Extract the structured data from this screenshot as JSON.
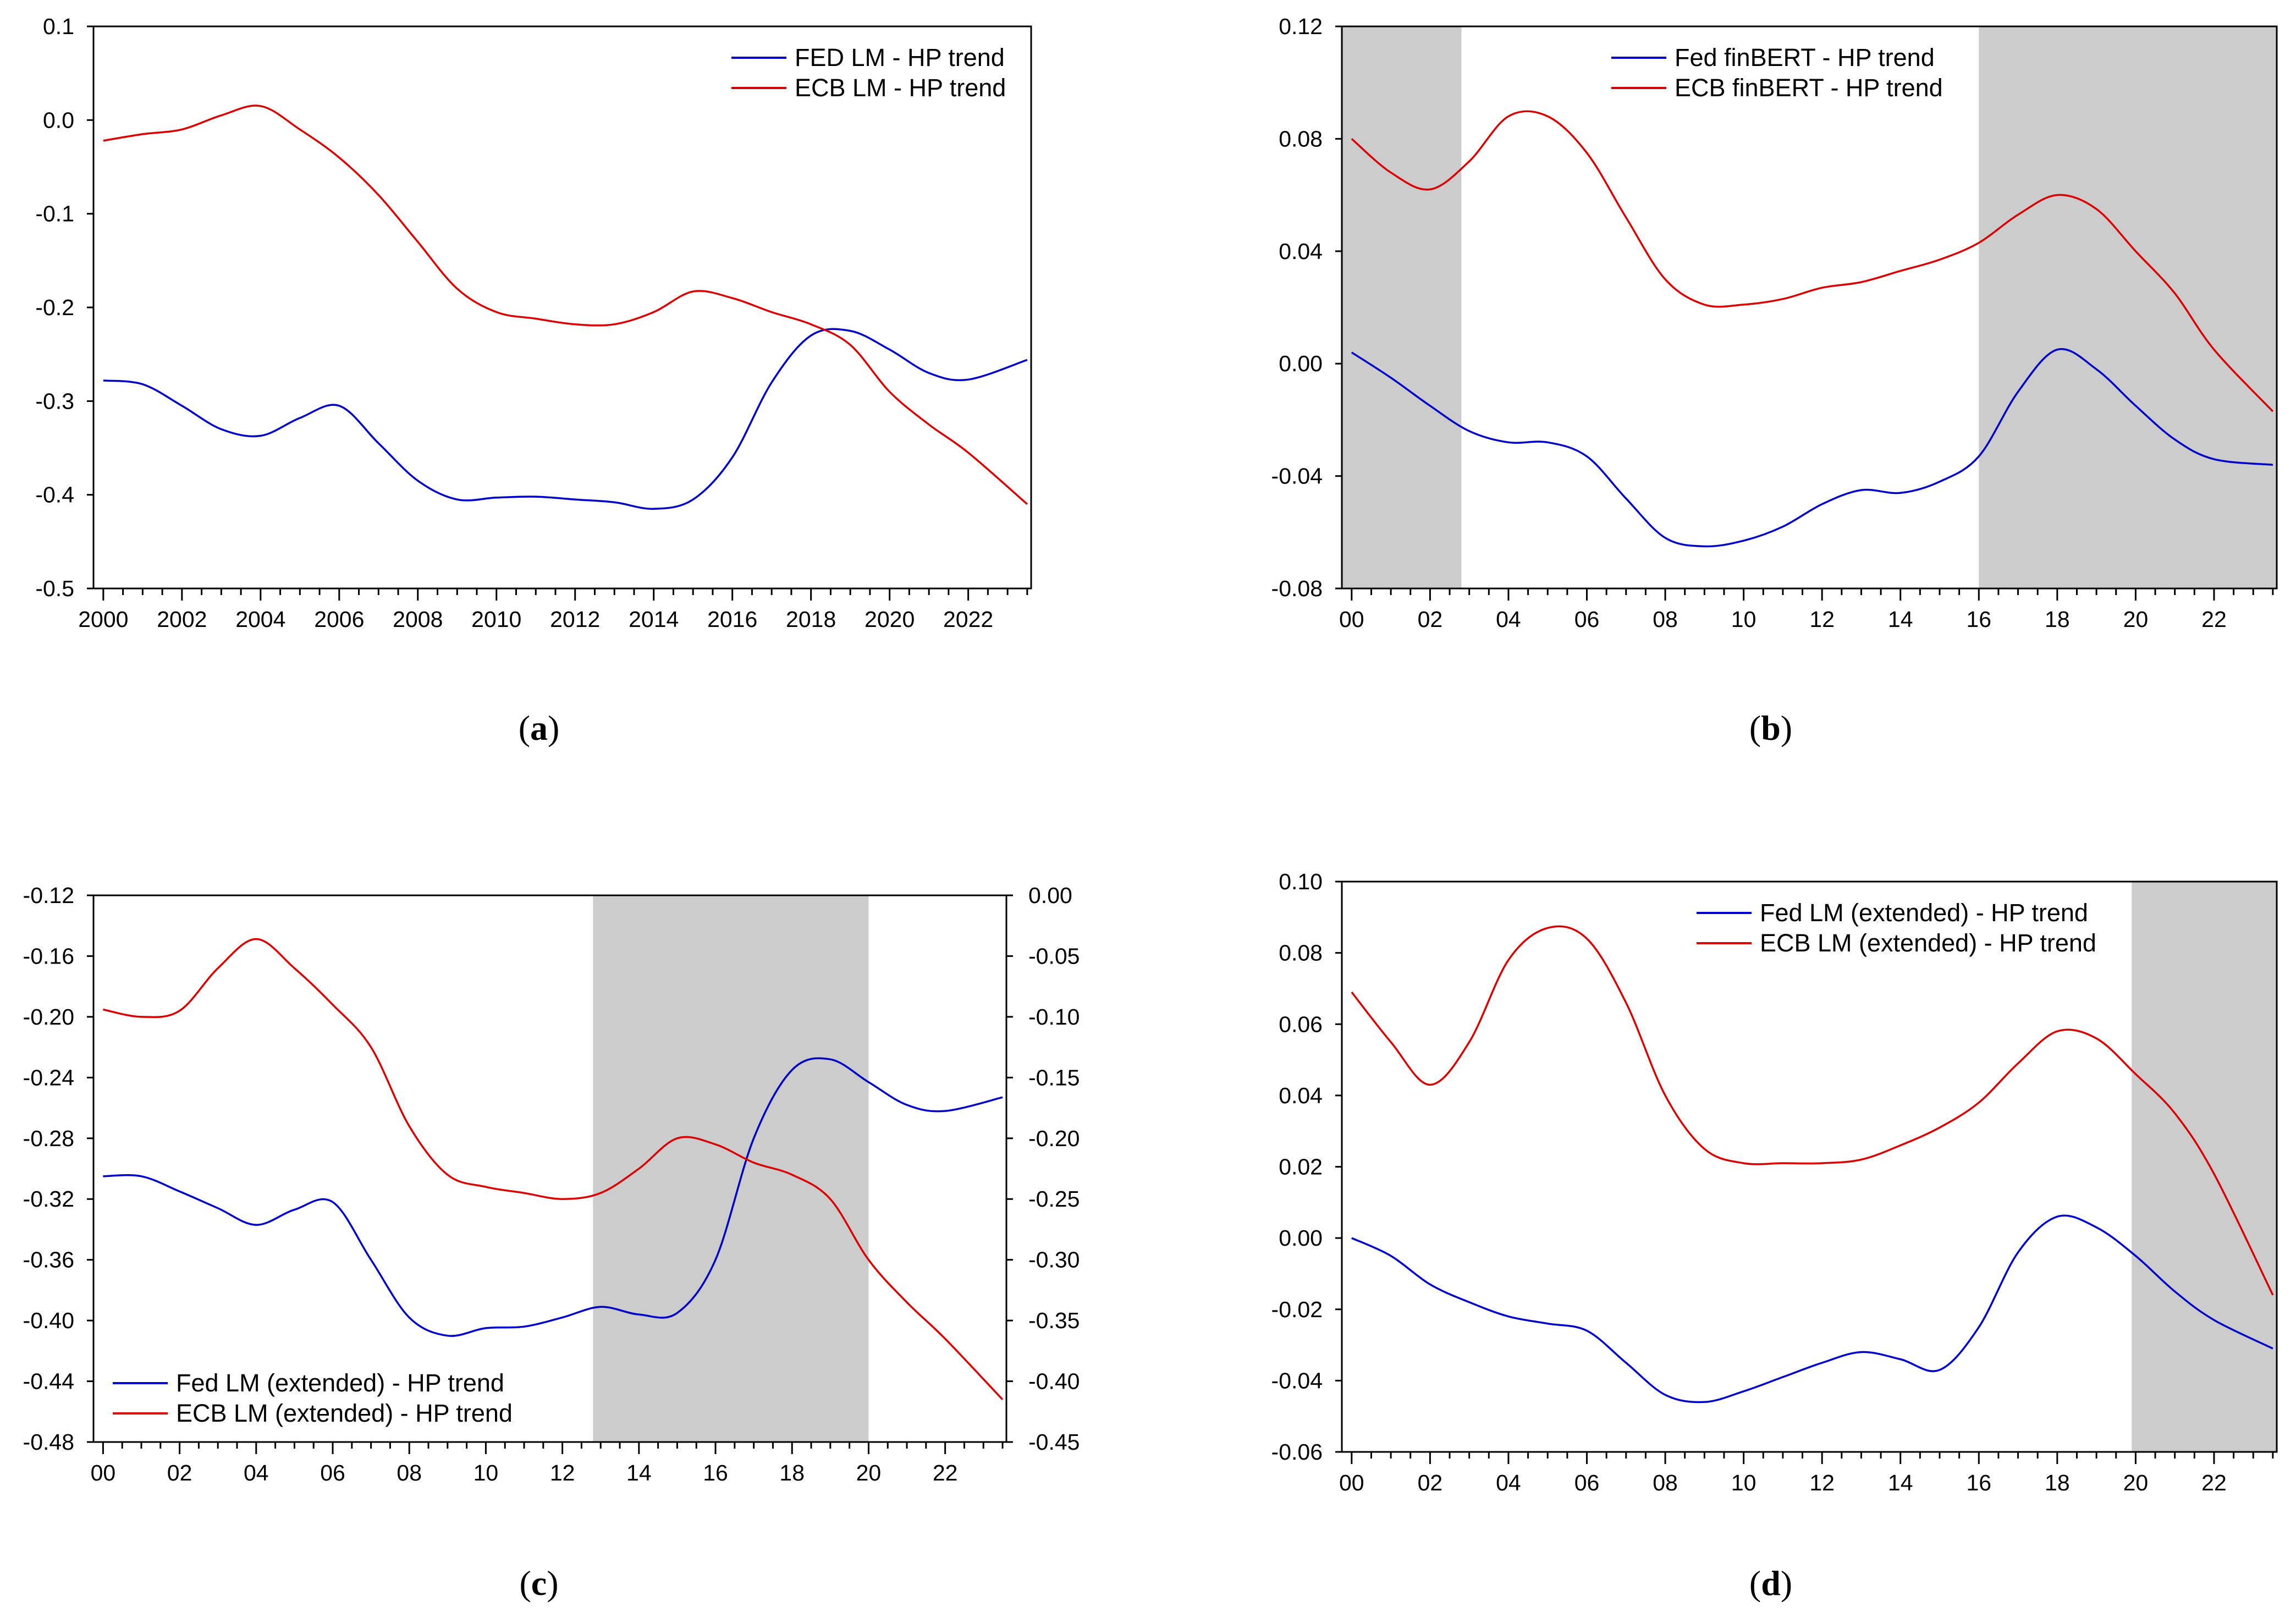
{
  "chart_data": [
    {
      "panel": "a",
      "caption": "a",
      "type": "line",
      "xlim": [
        1999.75,
        2023.6
      ],
      "ylim": [
        -0.5,
        0.1
      ],
      "yticks": [
        "0.1",
        "0.0",
        "-0.1",
        "-0.2",
        "-0.3",
        "-0.4",
        "-0.5"
      ],
      "ytick_values": [
        0.1,
        0.0,
        -0.1,
        -0.2,
        -0.3,
        -0.4,
        -0.5
      ],
      "xticks": [
        "2000",
        "2002",
        "2004",
        "2006",
        "2008",
        "2010",
        "2012",
        "2014",
        "2016",
        "2018",
        "2020",
        "2022"
      ],
      "xtick_values": [
        2000,
        2002,
        2004,
        2006,
        2008,
        2010,
        2012,
        2014,
        2016,
        2018,
        2020,
        2022
      ],
      "shading": [],
      "legend": [
        "FED LM - HP trend",
        "ECB LM - HP trend"
      ],
      "series": [
        {
          "name": "FED LM - HP trend",
          "color": "#0000cc",
          "axis": "left",
          "x": [
            2000,
            2001,
            2002,
            2003,
            2004,
            2005,
            2006,
            2007,
            2008,
            2009,
            2010,
            2011,
            2012,
            2013,
            2014,
            2015,
            2016,
            2017,
            2018,
            2019,
            2020,
            2021,
            2022,
            2023.5
          ],
          "y": [
            -0.278,
            -0.282,
            -0.305,
            -0.33,
            -0.337,
            -0.318,
            -0.305,
            -0.345,
            -0.385,
            -0.405,
            -0.403,
            -0.402,
            -0.405,
            -0.408,
            -0.415,
            -0.405,
            -0.36,
            -0.28,
            -0.23,
            -0.225,
            -0.245,
            -0.27,
            -0.277,
            -0.256
          ]
        },
        {
          "name": "ECB LM - HP trend",
          "color": "#dd0000",
          "axis": "left",
          "x": [
            2000,
            2001,
            2002,
            2003,
            2004,
            2005,
            2006,
            2007,
            2008,
            2009,
            2010,
            2011,
            2012,
            2013,
            2014,
            2015,
            2016,
            2017,
            2018,
            2019,
            2020,
            2021,
            2022,
            2023.5
          ],
          "y": [
            -0.022,
            -0.015,
            -0.01,
            0.005,
            0.015,
            -0.01,
            -0.04,
            -0.08,
            -0.13,
            -0.18,
            -0.205,
            -0.212,
            -0.218,
            -0.218,
            -0.205,
            -0.183,
            -0.19,
            -0.205,
            -0.218,
            -0.24,
            -0.29,
            -0.325,
            -0.355,
            -0.41
          ]
        }
      ]
    },
    {
      "panel": "b",
      "caption": "b",
      "type": "line",
      "xlim": [
        1999.75,
        2023.6
      ],
      "ylim": [
        -0.08,
        0.12
      ],
      "yticks": [
        "0.12",
        "0.08",
        "0.04",
        "0.00",
        "-0.04",
        "-0.08"
      ],
      "ytick_values": [
        0.12,
        0.08,
        0.04,
        0.0,
        -0.04,
        -0.08
      ],
      "xticks": [
        "00",
        "02",
        "04",
        "06",
        "08",
        "10",
        "12",
        "14",
        "16",
        "18",
        "20",
        "22"
      ],
      "xtick_values": [
        2000,
        2002,
        2004,
        2006,
        2008,
        2010,
        2012,
        2014,
        2016,
        2018,
        2020,
        2022
      ],
      "shading": [
        [
          1999.75,
          2002.8
        ],
        [
          2016.0,
          2023.6
        ]
      ],
      "legend": [
        "Fed finBERT - HP trend",
        "ECB finBERT - HP trend"
      ],
      "series": [
        {
          "name": "Fed finBERT - HP trend",
          "color": "#0000cc",
          "axis": "left",
          "x": [
            2000,
            2001,
            2002,
            2003,
            2004,
            2005,
            2006,
            2007,
            2008,
            2009,
            2010,
            2011,
            2012,
            2013,
            2014,
            2015,
            2016,
            2017,
            2018,
            2019,
            2020,
            2021,
            2022,
            2023.5
          ],
          "y": [
            0.004,
            -0.005,
            -0.015,
            -0.024,
            -0.028,
            -0.028,
            -0.033,
            -0.048,
            -0.062,
            -0.065,
            -0.063,
            -0.058,
            -0.05,
            -0.045,
            -0.046,
            -0.042,
            -0.033,
            -0.01,
            0.005,
            -0.002,
            -0.015,
            -0.027,
            -0.034,
            -0.036
          ]
        },
        {
          "name": "ECB finBERT - HP trend",
          "color": "#dd0000",
          "axis": "left",
          "x": [
            2000,
            2001,
            2002,
            2003,
            2004,
            2005,
            2006,
            2007,
            2008,
            2009,
            2010,
            2011,
            2012,
            2013,
            2014,
            2015,
            2016,
            2017,
            2018,
            2019,
            2020,
            2021,
            2022,
            2023.5
          ],
          "y": [
            0.08,
            0.068,
            0.062,
            0.072,
            0.088,
            0.088,
            0.075,
            0.052,
            0.03,
            0.021,
            0.021,
            0.023,
            0.027,
            0.029,
            0.033,
            0.037,
            0.043,
            0.053,
            0.06,
            0.055,
            0.04,
            0.025,
            0.005,
            -0.017
          ]
        }
      ]
    },
    {
      "panel": "c",
      "caption": "c",
      "type": "line",
      "xlim": [
        1999.75,
        2023.6
      ],
      "ylim": [
        -0.48,
        -0.12
      ],
      "ylim_right": [
        -0.45,
        0.0
      ],
      "yticks": [
        "-0.12",
        "-0.16",
        "-0.20",
        "-0.24",
        "-0.28",
        "-0.32",
        "-0.36",
        "-0.40",
        "-0.44",
        "-0.48"
      ],
      "ytick_values": [
        -0.12,
        -0.16,
        -0.2,
        -0.24,
        -0.28,
        -0.32,
        -0.36,
        -0.4,
        -0.44,
        -0.48
      ],
      "yticks_right": [
        "0.00",
        "-0.05",
        "-0.10",
        "-0.15",
        "-0.20",
        "-0.25",
        "-0.30",
        "-0.35",
        "-0.40",
        "-0.45"
      ],
      "ytick_values_right": [
        0.0,
        -0.05,
        -0.1,
        -0.15,
        -0.2,
        -0.25,
        -0.3,
        -0.35,
        -0.4,
        -0.45
      ],
      "xticks": [
        "00",
        "02",
        "04",
        "06",
        "08",
        "10",
        "12",
        "14",
        "16",
        "18",
        "20",
        "22"
      ],
      "xtick_values": [
        2000,
        2002,
        2004,
        2006,
        2008,
        2010,
        2012,
        2014,
        2016,
        2018,
        2020,
        2022
      ],
      "shading": [
        [
          2012.8,
          2020.0
        ]
      ],
      "legend": [
        "Fed LM (extended) - HP trend",
        "ECB LM (extended) - HP trend"
      ],
      "legend_position": "bottom-left",
      "series": [
        {
          "name": "Fed LM (extended) - HP trend",
          "color": "#0000cc",
          "axis": "left",
          "x": [
            2000,
            2001,
            2002,
            2003,
            2004,
            2005,
            2006,
            2007,
            2008,
            2009,
            2010,
            2011,
            2012,
            2013,
            2014,
            2015,
            2016,
            2017,
            2018,
            2019,
            2020,
            2021,
            2022,
            2023.5
          ],
          "y": [
            -0.305,
            -0.305,
            -0.315,
            -0.326,
            -0.337,
            -0.327,
            -0.322,
            -0.36,
            -0.398,
            -0.41,
            -0.405,
            -0.404,
            -0.398,
            -0.391,
            -0.396,
            -0.395,
            -0.36,
            -0.28,
            -0.235,
            -0.228,
            -0.243,
            -0.258,
            -0.262,
            -0.253
          ]
        },
        {
          "name": "ECB LM (extended) - HP trend",
          "color": "#dd0000",
          "axis": "right",
          "x": [
            2000,
            2001,
            2002,
            2003,
            2004,
            2005,
            2006,
            2007,
            2008,
            2009,
            2010,
            2011,
            2012,
            2013,
            2014,
            2015,
            2016,
            2017,
            2018,
            2019,
            2020,
            2021,
            2022,
            2023.5
          ],
          "y": [
            -0.094,
            -0.1,
            -0.095,
            -0.06,
            -0.036,
            -0.06,
            -0.09,
            -0.125,
            -0.19,
            -0.23,
            -0.24,
            -0.245,
            -0.25,
            -0.245,
            -0.225,
            -0.2,
            -0.205,
            -0.22,
            -0.23,
            -0.25,
            -0.3,
            -0.335,
            -0.365,
            -0.415
          ]
        }
      ]
    },
    {
      "panel": "d",
      "caption": "d",
      "type": "line",
      "xlim": [
        1999.75,
        2023.6
      ],
      "ylim": [
        -0.06,
        0.1
      ],
      "yticks": [
        "0.10",
        "0.08",
        "0.06",
        "0.04",
        "0.02",
        "0.00",
        "-0.02",
        "-0.04",
        "-0.06"
      ],
      "ytick_values": [
        0.1,
        0.08,
        0.06,
        0.04,
        0.02,
        0.0,
        -0.02,
        -0.04,
        -0.06
      ],
      "xticks": [
        "00",
        "02",
        "04",
        "06",
        "08",
        "10",
        "12",
        "14",
        "16",
        "18",
        "20",
        "22"
      ],
      "xtick_values": [
        2000,
        2002,
        2004,
        2006,
        2008,
        2010,
        2012,
        2014,
        2016,
        2018,
        2020,
        2022
      ],
      "shading": [
        [
          2019.9,
          2023.6
        ]
      ],
      "legend": [
        "Fed LM (extended) - HP trend",
        "ECB LM (extended) - HP trend"
      ],
      "series": [
        {
          "name": "Fed LM (extended) - HP trend",
          "color": "#0000cc",
          "axis": "left",
          "x": [
            2000,
            2001,
            2002,
            2003,
            2004,
            2005,
            2006,
            2007,
            2008,
            2009,
            2010,
            2011,
            2012,
            2013,
            2014,
            2015,
            2016,
            2017,
            2018,
            2019,
            2020,
            2021,
            2022,
            2023.5
          ],
          "y": [
            0.0,
            -0.005,
            -0.013,
            -0.018,
            -0.022,
            -0.024,
            -0.026,
            -0.035,
            -0.044,
            -0.046,
            -0.043,
            -0.039,
            -0.035,
            -0.032,
            -0.034,
            -0.037,
            -0.025,
            -0.004,
            0.006,
            0.003,
            -0.005,
            -0.015,
            -0.023,
            -0.031
          ]
        },
        {
          "name": "ECB LM (extended) - HP trend",
          "color": "#dd0000",
          "axis": "left",
          "x": [
            2000,
            2001,
            2002,
            2003,
            2004,
            2005,
            2006,
            2007,
            2008,
            2009,
            2010,
            2011,
            2012,
            2013,
            2014,
            2015,
            2016,
            2017,
            2018,
            2019,
            2020,
            2021,
            2022,
            2023.5
          ],
          "y": [
            0.069,
            0.055,
            0.043,
            0.055,
            0.078,
            0.087,
            0.084,
            0.066,
            0.04,
            0.025,
            0.021,
            0.021,
            0.021,
            0.022,
            0.026,
            0.031,
            0.038,
            0.049,
            0.058,
            0.056,
            0.046,
            0.035,
            0.018,
            -0.016
          ]
        }
      ]
    }
  ]
}
